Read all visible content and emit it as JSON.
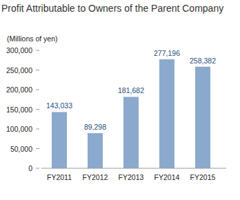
{
  "chart_data": {
    "type": "bar",
    "title": "Profit Attributable to Owners of the Parent Company",
    "y_label": "(Millions of yen)",
    "categories": [
      "FY2011",
      "FY2012",
      "FY2013",
      "FY2014",
      "FY2015"
    ],
    "values": [
      143033,
      89298,
      181682,
      277196,
      258382
    ],
    "value_labels": [
      "143,033",
      "89,298",
      "181,682",
      "277,196",
      "258,382"
    ],
    "color": "#8ba9cd",
    "data_labels": true,
    "grid": false,
    "ylim": [
      0,
      300000
    ],
    "yticks": [
      0,
      {
        "value": 50000,
        "label": "50,000"
      },
      {
        "value": 100000,
        "label": "100,000"
      },
      {
        "value": 150000,
        "label": "150,000"
      },
      {
        "value": 200000,
        "label": "200,000"
      },
      {
        "value": 250000,
        "label": "250,000"
      },
      {
        "value": 300000,
        "label": "300,000"
      }
    ]
  }
}
